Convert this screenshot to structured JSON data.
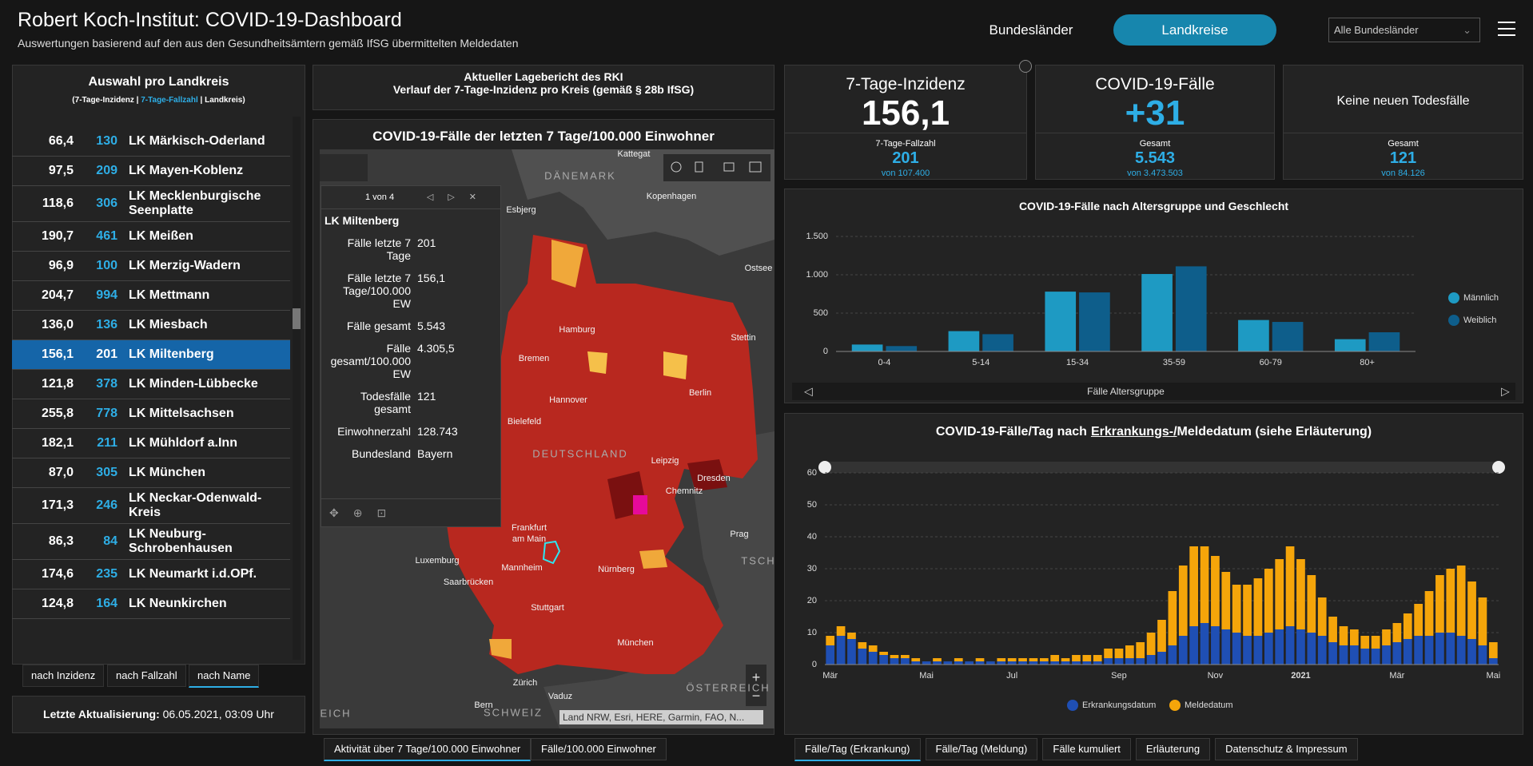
{
  "header": {
    "title": "Robert Koch-Institut: COVID-19-Dashboard",
    "subtitle": "Auswertungen basierend auf den aus den Gesundheitsämtern gemäß IfSG übermittelten Meldedaten"
  },
  "nav": {
    "tabs": [
      "Bundesländer",
      "Landkreise"
    ],
    "dropdown": "Alle Bundesländer"
  },
  "list": {
    "title": "Auswahl pro Landkreis",
    "legend": [
      "(7-Tage-Inzidenz |",
      "7-Tage-Fallzahl",
      "| Landkreis)"
    ],
    "rows": [
      [
        "66,4",
        "130",
        "LK Märkisch-Oderland"
      ],
      [
        "97,5",
        "209",
        "LK Mayen-Koblenz"
      ],
      [
        "118,6",
        "306",
        "LK Mecklenburgische Seenplatte"
      ],
      [
        "190,7",
        "461",
        "LK Meißen"
      ],
      [
        "96,9",
        "100",
        "LK Merzig-Wadern"
      ],
      [
        "204,7",
        "994",
        "LK Mettmann"
      ],
      [
        "136,0",
        "136",
        "LK Miesbach"
      ],
      [
        "156,1",
        "201",
        "LK Miltenberg"
      ],
      [
        "121,8",
        "378",
        "LK Minden-Lübbecke"
      ],
      [
        "255,8",
        "778",
        "LK Mittelsachsen"
      ],
      [
        "182,1",
        "211",
        "LK Mühldorf a.Inn"
      ],
      [
        "87,0",
        "305",
        "LK München"
      ],
      [
        "171,3",
        "246",
        "LK Neckar-Odenwald-Kreis"
      ],
      [
        "86,3",
        "84",
        "LK Neuburg-Schrobenhausen"
      ],
      [
        "174,6",
        "235",
        "LK Neumarkt i.d.OPf."
      ],
      [
        "124,8",
        "164",
        "LK Neunkirchen"
      ]
    ],
    "sort_tabs": [
      "nach Inzidenz",
      "nach Fallzahl",
      "nach Name"
    ],
    "update_label": "Letzte Aktualisierung:",
    "update_value": "06.05.2021, 03:09 Uhr"
  },
  "report": {
    "lines": [
      "Aktueller Lagebericht des RKI",
      "Verlauf der 7-Tage-Inzidenz pro Kreis (gemäß § 28b IfSG)"
    ]
  },
  "map": {
    "title": "COVID-19-Fälle der letzten 7 Tage/100.000 Einwohner",
    "labels": [
      "Kattegat",
      "DÄNEMARK",
      "Esbjerg",
      "Kopenhagen",
      "Ostsee",
      "Hamburg",
      "Bremen",
      "Stettin",
      "Hannover",
      "Berlin",
      "Bielefeld",
      "DEUTSCHLAND",
      "Leipzig",
      "Dresden",
      "Chemnitz",
      "Frankfurt",
      "am Main",
      "Prag",
      "Luxemburg",
      "Mannheim",
      "Nürnberg",
      "Saarbrücken",
      "Stuttgart",
      "München",
      "Zürich",
      "Vaduz",
      "Bern",
      "SCHWEIZ",
      "ÖSTERREICH",
      "TSCH",
      "EICH"
    ],
    "attribution": "Land NRW, Esri, HERE, Garmin, FAO, N...",
    "popup": {
      "counter": "1 von 4",
      "name": "LK Miltenberg",
      "fields": [
        [
          "Fälle letzte 7 Tage",
          "201"
        ],
        [
          "Fälle letzte 7 Tage/100.000 EW",
          "156,1"
        ],
        [
          "Fälle gesamt",
          "5.543"
        ],
        [
          "Fälle gesamt/100.000 EW",
          "4.305,5"
        ],
        [
          "Todesfälle gesamt",
          "121"
        ],
        [
          "Einwohnerzahl",
          "128.743"
        ],
        [
          "Bundesland",
          "Bayern"
        ]
      ]
    },
    "tabs": [
      "Aktivität über 7 Tage/100.000 Einwohner",
      "Fälle/100.000 Einwohner"
    ]
  },
  "kpis": [
    {
      "title": "7-Tage-Inzidenz",
      "value": "156,1",
      "sub_label": "7-Tage-Fallzahl",
      "sub_value": "201",
      "sub_total": "von 107.400"
    },
    {
      "title": "COVID-19-Fälle",
      "value": "+31",
      "sub_label": "Gesamt",
      "sub_value": "5.543",
      "sub_total": "von 3.473.503"
    },
    {
      "title": "Keine neuen Todesfälle",
      "sub_label": "Gesamt",
      "sub_value": "121",
      "sub_total": "von 84.126"
    }
  ],
  "chart_data": [
    {
      "type": "bar",
      "title": "COVID-19-Fälle nach Altersgruppe und Geschlecht",
      "x_label": "Fälle Altersgruppe",
      "categories": [
        "0-4",
        "5-14",
        "15-34",
        "35-59",
        "60-79",
        "80+"
      ],
      "series": [
        {
          "name": "Männlich",
          "color": "#1e9ac3",
          "values": [
            90,
            265,
            780,
            1010,
            410,
            160
          ]
        },
        {
          "name": "Weiblich",
          "color": "#0e5e8b",
          "values": [
            70,
            225,
            770,
            1110,
            385,
            250
          ]
        }
      ],
      "ylim": [
        0,
        1500
      ],
      "yticks": [
        0,
        500,
        {
          "value": 1000,
          "label": "1.000"
        },
        {
          "value": 1500,
          "label": "1.500"
        }
      ],
      "grid": true,
      "stacked": false,
      "legend": "right"
    },
    {
      "type": "bar",
      "title_parts": [
        "COVID-19-Fälle/Tag nach",
        "Erkrankungs-/",
        "Meldedatum (siehe Erläuterung)"
      ],
      "categories": [
        "Mär",
        null,
        null,
        null,
        null,
        null,
        null,
        null,
        null,
        "Mai",
        null,
        null,
        null,
        null,
        null,
        null,
        null,
        "Jul",
        null,
        null,
        null,
        null,
        null,
        null,
        null,
        null,
        null,
        "Sep",
        null,
        null,
        null,
        null,
        null,
        null,
        null,
        null,
        "Nov",
        null,
        null,
        null,
        null,
        null,
        null,
        null,
        "2021",
        null,
        null,
        null,
        null,
        null,
        null,
        null,
        null,
        "Mär",
        null,
        null,
        null,
        null,
        null,
        null,
        null,
        null,
        "Mai"
      ],
      "series": [
        {
          "name": "Erkrankungsdatum",
          "color": "#1f4fb4",
          "values": [
            6,
            9,
            8,
            5,
            4,
            3,
            2,
            2,
            1,
            1,
            1,
            1,
            1,
            1,
            1,
            1,
            1,
            1,
            1,
            1,
            1,
            1,
            1,
            1,
            1,
            1,
            2,
            2,
            2,
            2,
            3,
            4,
            6,
            9,
            12,
            13,
            12,
            11,
            10,
            9,
            9,
            10,
            11,
            12,
            11,
            10,
            9,
            7,
            6,
            6,
            5,
            5,
            6,
            7,
            8,
            9,
            9,
            10,
            10,
            9,
            8,
            6,
            2
          ]
        },
        {
          "name": "Meldedatum",
          "color": "#f5a50a",
          "values": [
            3,
            3,
            2,
            2,
            2,
            1,
            1,
            1,
            1,
            0,
            1,
            0,
            1,
            0,
            1,
            0,
            1,
            1,
            1,
            1,
            1,
            2,
            1,
            2,
            2,
            2,
            3,
            3,
            4,
            5,
            7,
            10,
            17,
            22,
            25,
            24,
            22,
            18,
            15,
            16,
            18,
            20,
            22,
            25,
            22,
            18,
            12,
            8,
            6,
            5,
            4,
            4,
            5,
            6,
            8,
            10,
            14,
            18,
            20,
            22,
            18,
            15,
            5
          ]
        }
      ],
      "ylim": [
        0,
        60
      ],
      "yticks": [
        0,
        10,
        20,
        30,
        40,
        50,
        60
      ],
      "grid": true,
      "stacked": true,
      "legend": "bottom"
    }
  ],
  "bottom_tabs": [
    "Fälle/Tag (Erkrankung)",
    "Fälle/Tag (Meldung)",
    "Fälle kumuliert",
    "Erläuterung",
    "Datenschutz & Impressum"
  ]
}
